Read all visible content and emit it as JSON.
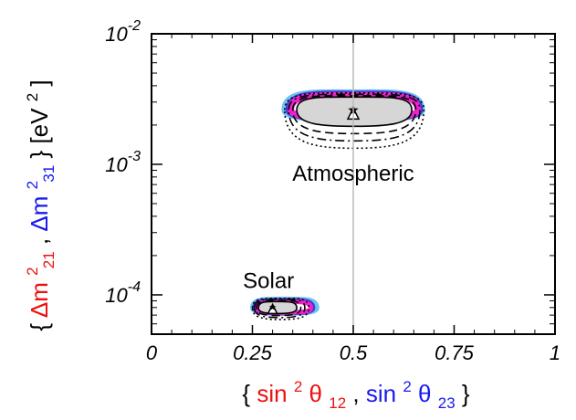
{
  "chart_data": {
    "type": "contour",
    "title": "",
    "x_scale": "linear",
    "y_scale": "log",
    "xlim": [
      0,
      1
    ],
    "ylim": [
      5e-05,
      0.01
    ],
    "x_ticks": [
      {
        "value": 0,
        "label": "0"
      },
      {
        "value": 0.25,
        "label": "0.25"
      },
      {
        "value": 0.5,
        "label": "0.5"
      },
      {
        "value": 0.75,
        "label": "0.75"
      },
      {
        "value": 1,
        "label": "1"
      }
    ],
    "y_ticks": [
      {
        "value": 0.0001,
        "base": "10",
        "exp": "-4"
      },
      {
        "value": 0.001,
        "base": "10",
        "exp": "-3"
      },
      {
        "value": 0.01,
        "base": "10",
        "exp": "-2"
      }
    ],
    "x_label": {
      "open": "{",
      "sep": ", ",
      "close": "}",
      "part1": {
        "main": "sin",
        "sup": "2",
        "theta": "θ",
        "sub": "12",
        "color": "#ee1111"
      },
      "part2": {
        "main": "sin",
        "sup": "2",
        "theta": "θ",
        "sub": "23",
        "color": "#1a1aee"
      }
    },
    "y_label": {
      "open": "{",
      "sep": ", ",
      "close": "}",
      "part1": {
        "main": "Δm",
        "sup": "2",
        "sub": "21",
        "color": "#ee1111"
      },
      "part2": {
        "main": "Δm",
        "sup": "2",
        "sub": "31",
        "color": "#1a1aee"
      },
      "unit": " [eV",
      "unit_sup": "2",
      "unit_close": "]"
    },
    "vertical_reference_line": {
      "x": 0.5,
      "color": "#bbbbbb"
    },
    "regions": [
      {
        "name": "Atmospheric",
        "label_text": "Atmospheric",
        "best_fit": {
          "x": 0.5,
          "y": 0.00245,
          "marker": "triangle"
        },
        "true_point": {
          "x": 0.5,
          "y": 0.0026,
          "marker": "star"
        },
        "colored_bands": [
          {
            "color": "#6ec3ee",
            "x_range": [
              0.33,
              0.67
            ]
          },
          {
            "color": "#3a3ad6",
            "x_range": [
              0.34,
              0.665
            ]
          },
          {
            "color": "#ee22cc",
            "x_range": [
              0.345,
              0.66
            ]
          }
        ],
        "fill_color": "#d6d6d6",
        "contours": [
          {
            "style": "solid",
            "x_range": [
              0.36,
              0.645
            ]
          },
          {
            "style": "dashed",
            "x_range": [
              0.35,
              0.655
            ]
          },
          {
            "style": "dashdot",
            "x_range": [
              0.34,
              0.665
            ]
          },
          {
            "style": "dotted",
            "x_range": [
              0.33,
              0.675
            ]
          }
        ]
      },
      {
        "name": "Solar",
        "label_text": "Solar",
        "best_fit": {
          "x": 0.3,
          "y": 7.8e-05,
          "marker": "triangle"
        },
        "true_point": {
          "x": 0.3,
          "y": 7.8e-05,
          "marker": "star"
        },
        "colored_bands": [
          {
            "color": "#6ec3ee",
            "x_range": [
              0.25,
              0.41
            ]
          },
          {
            "color": "#3a3ad6",
            "x_range": [
              0.255,
              0.4
            ]
          },
          {
            "color": "#ee22cc",
            "x_range": [
              0.26,
              0.395
            ]
          }
        ],
        "fill_color": "#d6d6d6",
        "contours": [
          {
            "style": "solid",
            "x_range": [
              0.265,
              0.36
            ]
          },
          {
            "style": "dashed",
            "x_range": [
              0.26,
              0.37
            ]
          },
          {
            "style": "dashdot",
            "x_range": [
              0.255,
              0.38
            ]
          },
          {
            "style": "dotted",
            "x_range": [
              0.25,
              0.39
            ]
          }
        ]
      }
    ]
  }
}
